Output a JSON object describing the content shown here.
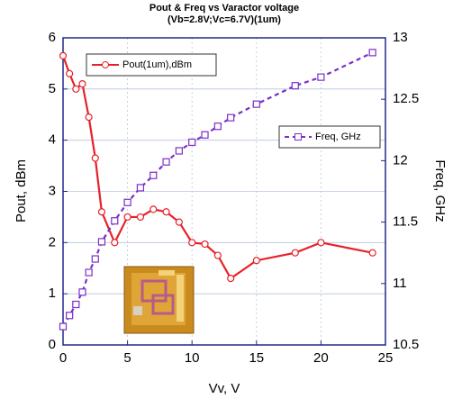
{
  "chart_data": {
    "type": "line",
    "title": "Pout & Freq vs Varactor voltage",
    "subtitle": "(Vb=2.8V;Vc=6.7V)(1um)",
    "x_label": "Vv, V",
    "y_label": "Pout, dBm",
    "y2_label": "Freq, GHz",
    "x": [
      0,
      0.5,
      1,
      1.5,
      2,
      2.5,
      3,
      4,
      5,
      6,
      7,
      8,
      9,
      10,
      11,
      12,
      13,
      15,
      18,
      20,
      24
    ],
    "series": [
      {
        "name": "Pout(1um),dBm",
        "color": "#e8202a",
        "marker": "circle",
        "dashed": false,
        "values": [
          5.65,
          5.3,
          5.0,
          5.1,
          4.45,
          3.65,
          2.6,
          2.0,
          2.5,
          2.5,
          2.65,
          2.6,
          2.4,
          2.0,
          1.97,
          1.75,
          1.3,
          1.65,
          1.8,
          2.0,
          1.8
        ]
      },
      {
        "name": "Freq, GHz",
        "color": "#7a2fc9",
        "marker": "square",
        "dashed": true,
        "axis": "y2",
        "values": [
          10.65,
          10.74,
          10.83,
          10.93,
          11.09,
          11.2,
          11.34,
          11.51,
          11.66,
          11.78,
          11.88,
          11.99,
          12.08,
          12.15,
          12.21,
          12.28,
          12.35,
          12.46,
          12.61,
          12.68,
          12.88
        ]
      }
    ],
    "xlim": [
      0,
      25
    ],
    "xticks": [
      0,
      5,
      10,
      15,
      20,
      25
    ],
    "ylim": [
      0,
      6
    ],
    "yticks": [
      0,
      1,
      2,
      3,
      4,
      5,
      6
    ],
    "y2lim": [
      10.5,
      13
    ],
    "y2ticks": [
      10.5,
      11,
      11.5,
      12,
      12.5,
      13
    ],
    "grid": true
  }
}
